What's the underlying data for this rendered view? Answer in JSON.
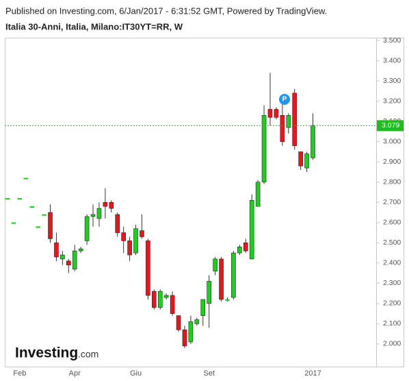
{
  "header": {
    "published": "Published on Investing.com, 6/Jan/2017 - 6:31:52 GMT, Powered by TradingView.",
    "symbol": "Italia 30-Anni, Italia, Milano:IT30YT=RR, W"
  },
  "logo": {
    "name": "Investing",
    "suffix": ".com"
  },
  "chart_data": {
    "type": "candlestick",
    "categories": [
      null,
      null,
      "Feb",
      null,
      null,
      null,
      null,
      null,
      null,
      null,
      null,
      "Apr",
      null,
      null,
      null,
      null,
      null,
      null,
      null,
      null,
      null,
      "Giu",
      null,
      null,
      null,
      null,
      null,
      null,
      null,
      null,
      null,
      null,
      null,
      "Set",
      null,
      null,
      null,
      null,
      null,
      null,
      null,
      null,
      null,
      null,
      null,
      null,
      null,
      null,
      null,
      null,
      "2017"
    ],
    "open": [
      2.72,
      2.6,
      2.72,
      2.82,
      2.68,
      2.58,
      2.64,
      2.65,
      2.5,
      2.42,
      2.41,
      2.37,
      2.46,
      2.51,
      2.63,
      2.62,
      2.7,
      2.7,
      2.64,
      2.55,
      2.51,
      2.45,
      2.56,
      2.51,
      2.26,
      2.18,
      2.23,
      2.24,
      2.14,
      2.07,
      2.01,
      2.1,
      2.14,
      2.2,
      2.36,
      2.42,
      2.22,
      2.23,
      2.45,
      2.5,
      2.42,
      2.68,
      2.8,
      3.16,
      3.16,
      3.13,
      3.07,
      3.24,
      2.95,
      2.87,
      2.92
    ],
    "high": [
      2.72,
      2.6,
      2.72,
      2.82,
      2.68,
      2.58,
      2.64,
      2.69,
      2.55,
      2.46,
      2.42,
      2.49,
      2.48,
      2.64,
      2.69,
      2.7,
      2.77,
      2.71,
      2.65,
      2.58,
      2.53,
      2.59,
      2.64,
      2.52,
      2.27,
      2.27,
      2.25,
      2.26,
      2.14,
      2.09,
      2.14,
      2.13,
      2.22,
      2.34,
      2.43,
      2.43,
      2.23,
      2.46,
      2.49,
      2.52,
      2.74,
      2.81,
      3.18,
      3.34,
      3.17,
      3.23,
      3.14,
      3.26,
      2.95,
      2.95,
      3.14
    ],
    "low": [
      2.72,
      2.6,
      2.72,
      2.82,
      2.68,
      2.58,
      2.64,
      2.5,
      2.41,
      2.39,
      2.35,
      2.36,
      2.45,
      2.49,
      2.58,
      2.58,
      2.62,
      2.65,
      2.53,
      2.45,
      2.41,
      2.44,
      2.52,
      2.22,
      2.17,
      2.17,
      2.22,
      2.14,
      2.06,
      1.98,
      2.0,
      2.09,
      2.09,
      2.08,
      2.34,
      2.21,
      2.21,
      2.22,
      2.44,
      2.45,
      2.42,
      2.68,
      2.79,
      3.08,
      3.11,
      2.98,
      3.04,
      2.96,
      2.86,
      2.85,
      2.91
    ],
    "close": [
      2.72,
      2.6,
      2.72,
      2.82,
      2.68,
      2.58,
      2.64,
      2.52,
      2.43,
      2.44,
      2.39,
      2.46,
      2.47,
      2.63,
      2.64,
      2.67,
      2.68,
      2.67,
      2.55,
      2.51,
      2.44,
      2.57,
      2.53,
      2.24,
      2.18,
      2.26,
      2.24,
      2.15,
      2.07,
      1.99,
      2.11,
      2.12,
      2.22,
      2.31,
      2.42,
      2.22,
      2.22,
      2.45,
      2.48,
      2.46,
      2.71,
      2.8,
      3.13,
      3.12,
      3.12,
      3.0,
      3.13,
      2.98,
      2.88,
      2.94,
      3.08
    ],
    "up_color": "#22cc22",
    "down_color": "#e8161d",
    "last_value": 3.079,
    "last_color": "#22bb22",
    "marker_label": "P",
    "ylim": [
      1.888,
      3.514
    ],
    "yticks": [
      {
        "value": 2,
        "label": "2.000"
      },
      {
        "value": 2.1,
        "label": "2.100"
      },
      {
        "value": 2.2,
        "label": "2.200"
      },
      {
        "value": 2.3,
        "label": "2.300"
      },
      {
        "value": 2.4,
        "label": "2.400"
      },
      {
        "value": 2.5,
        "label": "2.500"
      },
      {
        "value": 2.6,
        "label": "2.600"
      },
      {
        "value": 2.7,
        "label": "2.700"
      },
      {
        "value": 2.8,
        "label": "2.800"
      },
      {
        "value": 2.9,
        "label": "2.900"
      },
      {
        "value": 3,
        "label": "3.000"
      },
      {
        "value": 3.1,
        "label": "3.100"
      },
      {
        "value": 3.2,
        "label": "3.200"
      },
      {
        "value": 3.3,
        "label": "3.300"
      },
      {
        "value": 3.4,
        "label": "3.400"
      },
      {
        "value": 3.5,
        "label": "3.500"
      }
    ],
    "grid": false
  }
}
